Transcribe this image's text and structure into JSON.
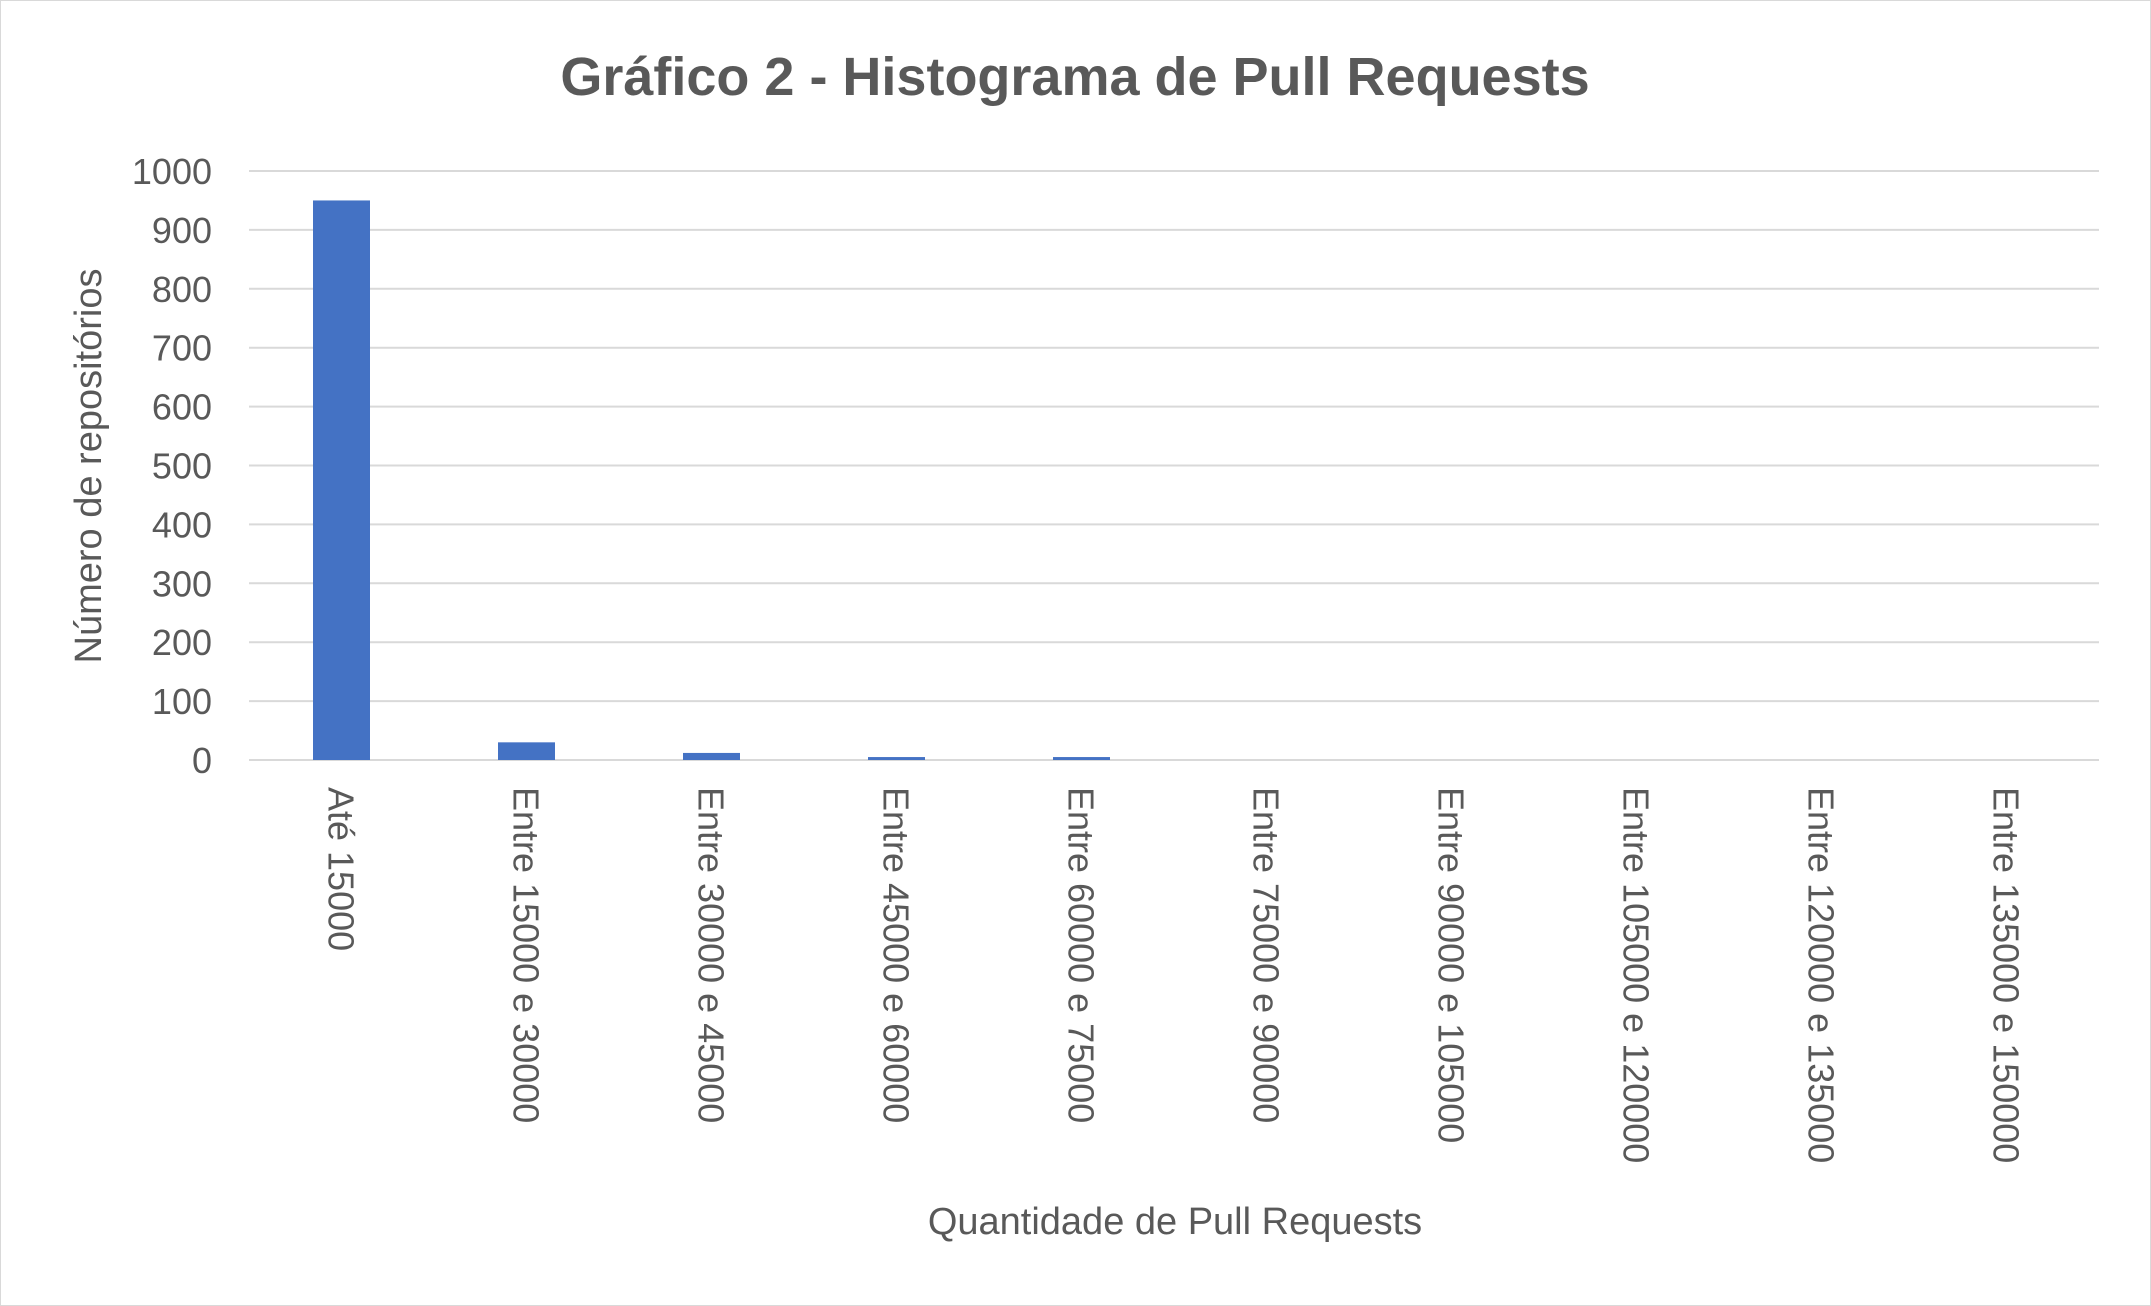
{
  "chart_data": {
    "type": "bar",
    "title": "Gráfico 2 - Histograma de Pull Requests",
    "xlabel": "Quantidade de Pull Requests",
    "ylabel": "Número de repositórios",
    "categories": [
      "Até 15000",
      "Entre 15000 e 30000",
      "Entre 30000 e 45000",
      "Entre 45000 e 60000",
      "Entre 60000 e 75000",
      "Entre 75000 e 90000",
      "Entre 90000 e 105000",
      "Entre 105000 e 120000",
      "Entre 120000 e 135000",
      "Entre 135000 e 150000"
    ],
    "values": [
      950,
      30,
      12,
      5,
      5,
      0,
      0,
      0,
      0,
      0
    ],
    "ylim": [
      0,
      1000
    ],
    "yticks": [
      "0",
      "100",
      "200",
      "300",
      "400",
      "500",
      "600",
      "700",
      "800",
      "900",
      "1000"
    ],
    "grid": true,
    "legend": "none",
    "colors": {
      "bar": "#4472c4",
      "grid": "#d9d9d9",
      "text": "#595959"
    }
  }
}
